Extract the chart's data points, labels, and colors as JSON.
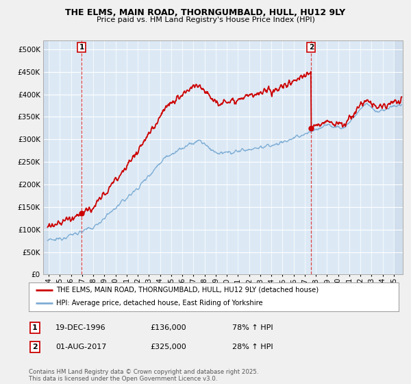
{
  "title1": "THE ELMS, MAIN ROAD, THORNGUMBALD, HULL, HU12 9LY",
  "title2": "Price paid vs. HM Land Registry's House Price Index (HPI)",
  "ytick_values": [
    0,
    50000,
    100000,
    150000,
    200000,
    250000,
    300000,
    350000,
    400000,
    450000,
    500000
  ],
  "ylim": [
    0,
    520000
  ],
  "xlim_start": 1993.5,
  "xlim_end": 2025.8,
  "transaction1_x": 1996.96,
  "transaction1_y": 136000,
  "transaction2_x": 2017.58,
  "transaction2_y": 325000,
  "legend_red": "THE ELMS, MAIN ROAD, THORNGUMBALD, HULL, HU12 9LY (detached house)",
  "legend_blue": "HPI: Average price, detached house, East Riding of Yorkshire",
  "annotation1_date": "19-DEC-1996",
  "annotation1_price": "£136,000",
  "annotation1_hpi": "78% ↑ HPI",
  "annotation2_date": "01-AUG-2017",
  "annotation2_price": "£325,000",
  "annotation2_hpi": "28% ↑ HPI",
  "copyright_text": "Contains HM Land Registry data © Crown copyright and database right 2025.\nThis data is licensed under the Open Government Licence v3.0.",
  "red_color": "#cc0000",
  "blue_color": "#7eadd4",
  "bg_color": "#f0f0f0",
  "plot_bg_color": "#dce9f5",
  "grid_color": "#ffffff",
  "vline_color": "#dd4444"
}
